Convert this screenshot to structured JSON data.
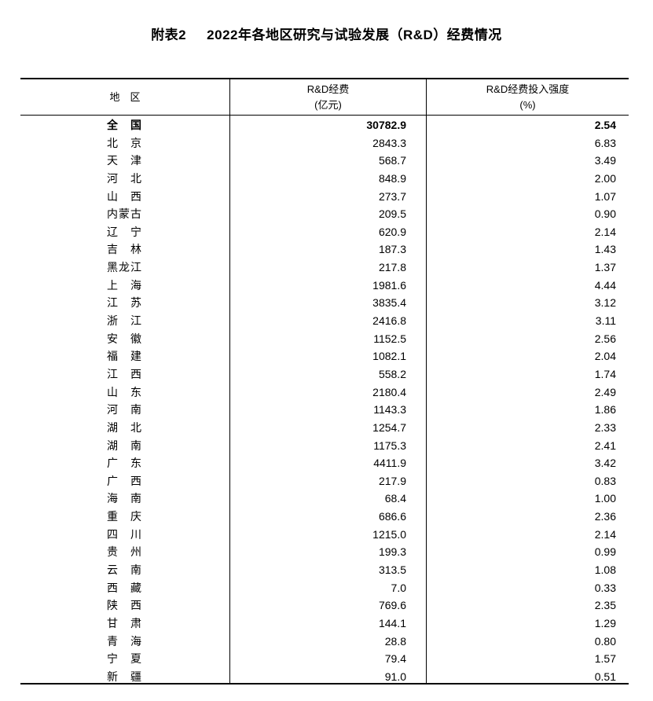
{
  "title": {
    "number": "附表2",
    "text": "2022年各地区研究与试验发展（R&D）经费情况"
  },
  "header": {
    "region": "地　区",
    "rd_funds": "R&D经费",
    "rd_funds_unit": "(亿元)",
    "rd_intensity": "R&D经费投入强度",
    "rd_intensity_unit": "(%)"
  },
  "rows": [
    {
      "region": "全　国",
      "funds": "30782.9",
      "intensity": "2.54"
    },
    {
      "region": "北　京",
      "funds": "2843.3",
      "intensity": "6.83"
    },
    {
      "region": "天　津",
      "funds": "568.7",
      "intensity": "3.49"
    },
    {
      "region": "河　北",
      "funds": "848.9",
      "intensity": "2.00"
    },
    {
      "region": "山　西",
      "funds": "273.7",
      "intensity": "1.07"
    },
    {
      "region": "内蒙古",
      "funds": "209.5",
      "intensity": "0.90"
    },
    {
      "region": "辽　宁",
      "funds": "620.9",
      "intensity": "2.14"
    },
    {
      "region": "吉　林",
      "funds": "187.3",
      "intensity": "1.43"
    },
    {
      "region": "黑龙江",
      "funds": "217.8",
      "intensity": "1.37"
    },
    {
      "region": "上　海",
      "funds": "1981.6",
      "intensity": "4.44"
    },
    {
      "region": "江　苏",
      "funds": "3835.4",
      "intensity": "3.12"
    },
    {
      "region": "浙　江",
      "funds": "2416.8",
      "intensity": "3.11"
    },
    {
      "region": "安　徽",
      "funds": "1152.5",
      "intensity": "2.56"
    },
    {
      "region": "福　建",
      "funds": "1082.1",
      "intensity": "2.04"
    },
    {
      "region": "江　西",
      "funds": "558.2",
      "intensity": "1.74"
    },
    {
      "region": "山　东",
      "funds": "2180.4",
      "intensity": "2.49"
    },
    {
      "region": "河　南",
      "funds": "1143.3",
      "intensity": "1.86"
    },
    {
      "region": "湖　北",
      "funds": "1254.7",
      "intensity": "2.33"
    },
    {
      "region": "湖　南",
      "funds": "1175.3",
      "intensity": "2.41"
    },
    {
      "region": "广　东",
      "funds": "4411.9",
      "intensity": "3.42"
    },
    {
      "region": "广　西",
      "funds": "217.9",
      "intensity": "0.83"
    },
    {
      "region": "海　南",
      "funds": "68.4",
      "intensity": "1.00"
    },
    {
      "region": "重　庆",
      "funds": "686.6",
      "intensity": "2.36"
    },
    {
      "region": "四　川",
      "funds": "1215.0",
      "intensity": "2.14"
    },
    {
      "region": "贵　州",
      "funds": "199.3",
      "intensity": "0.99"
    },
    {
      "region": "云　南",
      "funds": "313.5",
      "intensity": "1.08"
    },
    {
      "region": "西　藏",
      "funds": "7.0",
      "intensity": "0.33"
    },
    {
      "region": "陕　西",
      "funds": "769.6",
      "intensity": "2.35"
    },
    {
      "region": "甘　肃",
      "funds": "144.1",
      "intensity": "1.29"
    },
    {
      "region": "青　海",
      "funds": "28.8",
      "intensity": "0.80"
    },
    {
      "region": "宁　夏",
      "funds": "79.4",
      "intensity": "1.57"
    },
    {
      "region": "新　疆",
      "funds": "91.0",
      "intensity": "0.51"
    }
  ]
}
